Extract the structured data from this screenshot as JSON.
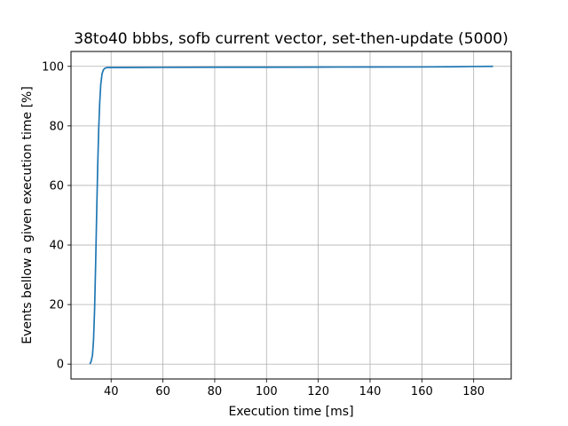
{
  "chart_data": {
    "type": "line",
    "title": "38to40 bbbs, sofb current vector, set-then-update (5000)",
    "xlabel": "Execution time [ms]",
    "ylabel": "Events bellow a given execution time [%]",
    "xlim": [
      24.5,
      194.5
    ],
    "ylim": [
      -5,
      105
    ],
    "xticks": [
      40,
      60,
      80,
      100,
      120,
      140,
      160,
      180
    ],
    "yticks": [
      0,
      20,
      40,
      60,
      80,
      100
    ],
    "grid": true,
    "legend": "none",
    "series": [
      {
        "color": "#1f77b4",
        "x": [
          31.8,
          32.3,
          32.8,
          33.2,
          33.6,
          34.0,
          34.4,
          34.8,
          35.2,
          35.6,
          36.0,
          36.5,
          37.0,
          37.5,
          38.0,
          38.5,
          39.5,
          45,
          60,
          80,
          100,
          120,
          140,
          160,
          170,
          180,
          187.5
        ],
        "y": [
          0,
          1,
          3,
          8,
          18,
          33,
          50,
          66,
          79,
          88,
          94,
          97.5,
          98.8,
          99.3,
          99.5,
          99.6,
          99.6,
          99.6,
          99.65,
          99.7,
          99.7,
          99.75,
          99.78,
          99.8,
          99.85,
          99.95,
          100
        ]
      }
    ]
  }
}
